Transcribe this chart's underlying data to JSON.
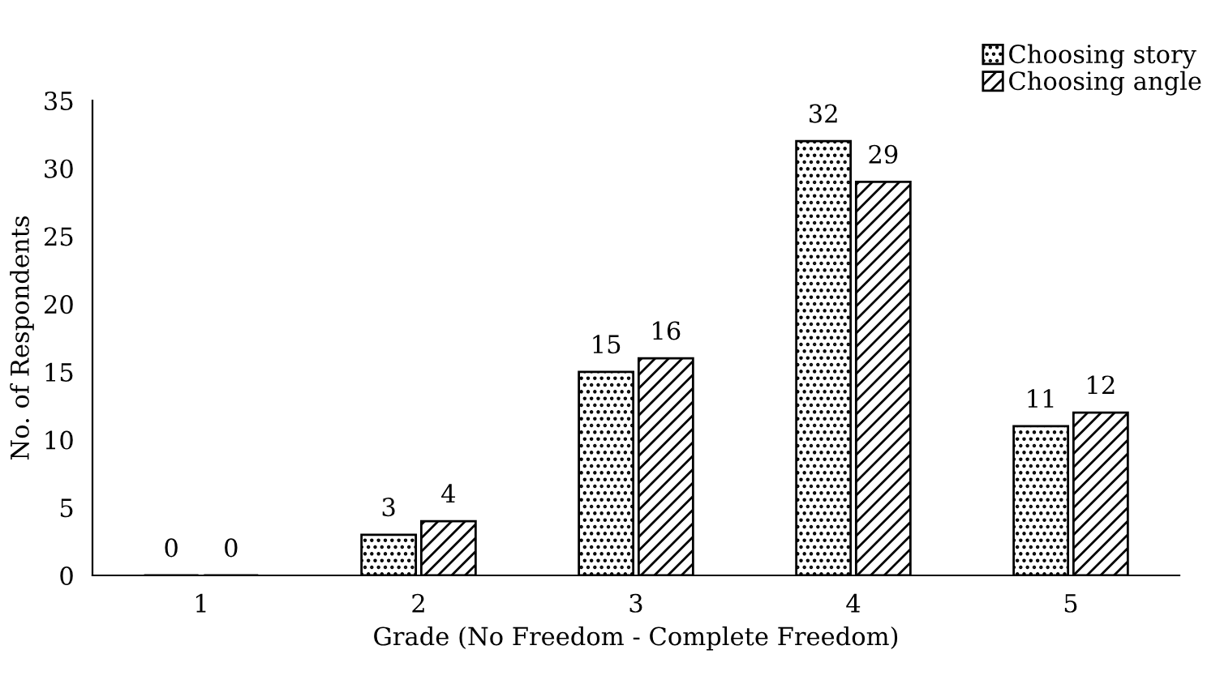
{
  "chart_data": {
    "type": "bar",
    "xlabel": "Grade (No Freedom - Complete Freedom)",
    "ylabel": "No. of Respondents",
    "categories": [
      "1",
      "2",
      "3",
      "4",
      "5"
    ],
    "series": [
      {
        "name": "Choosing story",
        "color": "#000000",
        "values": [
          0,
          3,
          15,
          32,
          11
        ]
      },
      {
        "name": "Choosing angle",
        "color": "#000000",
        "values": [
          0,
          4,
          16,
          29,
          12
        ]
      }
    ],
    "ylim": [
      0,
      35
    ],
    "yticks": [
      0,
      5,
      10,
      15,
      20,
      25,
      30,
      35
    ],
    "grid": false,
    "legend": "top right",
    "data_labels": true
  }
}
